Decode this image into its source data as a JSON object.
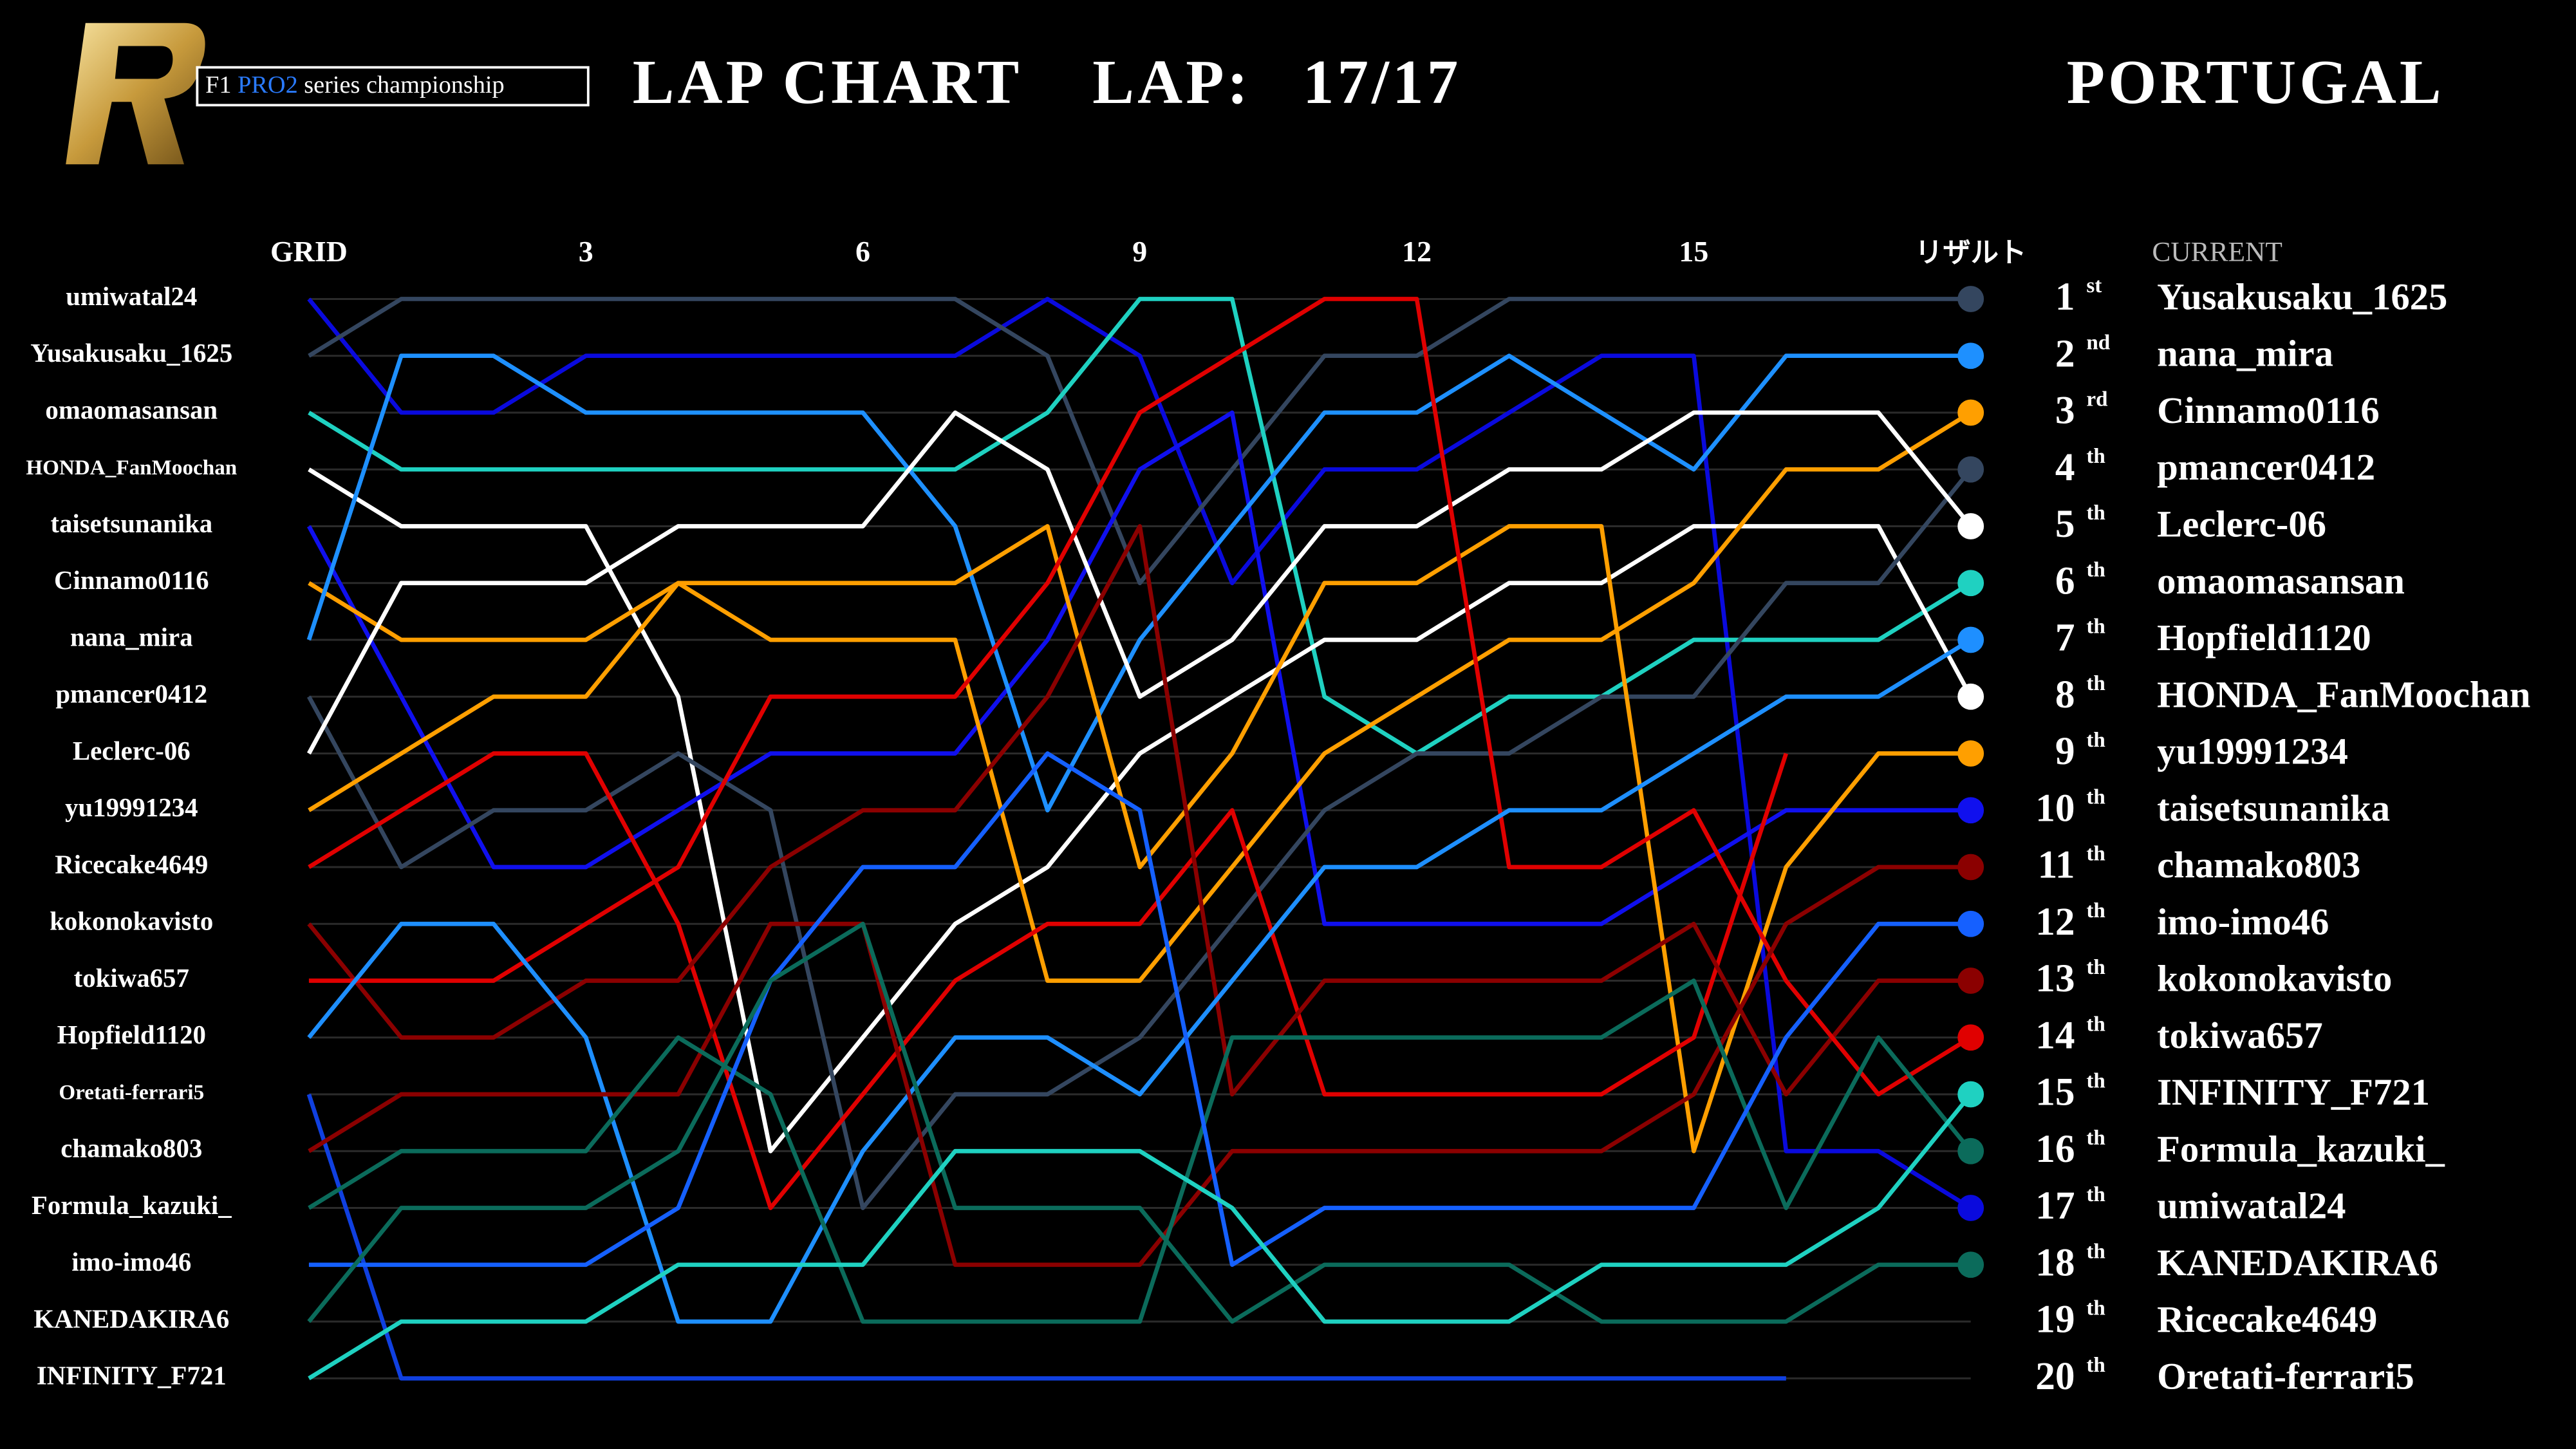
{
  "header": {
    "logo_f1": "F1",
    "logo_pro2": "PRO2",
    "logo_series": "series championship",
    "lap_label": "LAP:",
    "lap_value": "17/17",
    "location": "PORTUGAL"
  },
  "chart_data": {
    "type": "line",
    "title": "LAP CHART",
    "current_label": "CURRENT",
    "x": [
      "GRID",
      null,
      null,
      "3",
      null,
      null,
      "6",
      null,
      null,
      "9",
      null,
      null,
      "12",
      null,
      null,
      "15",
      null,
      null,
      "リザルト"
    ],
    "ylim": [
      1,
      20
    ],
    "series": [
      {
        "name": "umiwatal24",
        "color": "#0a0add",
        "values": [
          1,
          3,
          3,
          2,
          2,
          2,
          2,
          2,
          1,
          2,
          6,
          4,
          4,
          3,
          2,
          2,
          16,
          16,
          17
        ]
      },
      {
        "name": "Yusakusaku_1625",
        "color": "#34465f",
        "values": [
          2,
          1,
          1,
          1,
          1,
          1,
          1,
          1,
          2,
          6,
          4,
          2,
          2,
          1,
          1,
          1,
          1,
          1,
          1
        ]
      },
      {
        "name": "omaomasansan",
        "color": "#1fd1c1",
        "values": [
          3,
          4,
          4,
          4,
          4,
          4,
          4,
          4,
          3,
          1,
          1,
          8,
          9,
          8,
          8,
          7,
          7,
          7,
          6
        ]
      },
      {
        "name": "HONDA_FanMoochan",
        "color": "#ffffff",
        "values": [
          4,
          5,
          5,
          5,
          8,
          16,
          14,
          12,
          11,
          9,
          8,
          7,
          7,
          6,
          6,
          5,
          5,
          5,
          8
        ]
      },
      {
        "name": "taisetsunanika",
        "color": "#1010ee",
        "values": [
          5,
          8,
          11,
          11,
          10,
          9,
          9,
          9,
          7,
          4,
          3,
          12,
          12,
          12,
          12,
          11,
          10,
          10,
          10
        ]
      },
      {
        "name": "Cinnamo0116",
        "color": "#ff9f00",
        "values": [
          6,
          7,
          7,
          7,
          6,
          7,
          7,
          7,
          13,
          13,
          11,
          9,
          8,
          7,
          7,
          6,
          4,
          4,
          3
        ]
      },
      {
        "name": "nana_mira",
        "color": "#1e90ff",
        "values": [
          7,
          2,
          2,
          3,
          3,
          3,
          3,
          5,
          10,
          7,
          5,
          3,
          3,
          2,
          3,
          4,
          2,
          2,
          2
        ]
      },
      {
        "name": "pmancer0412",
        "color": "#34465f",
        "values": [
          8,
          11,
          10,
          10,
          9,
          10,
          17,
          15,
          15,
          14,
          12,
          10,
          9,
          9,
          8,
          8,
          6,
          6,
          4
        ]
      },
      {
        "name": "Leclerc-06",
        "color": "#ffffff",
        "values": [
          9,
          6,
          6,
          6,
          5,
          5,
          5,
          3,
          4,
          8,
          7,
          5,
          5,
          4,
          4,
          3,
          3,
          3,
          5
        ]
      },
      {
        "name": "yu19991234",
        "color": "#ff9f00",
        "values": [
          10,
          9,
          8,
          8,
          6,
          6,
          6,
          6,
          5,
          11,
          9,
          6,
          6,
          5,
          5,
          16,
          11,
          9,
          9
        ]
      },
      {
        "name": "Ricecake4649",
        "color": "#e00000",
        "values": [
          11,
          10,
          9,
          9,
          12,
          17,
          15,
          13,
          12,
          12,
          10,
          15,
          15,
          15,
          15,
          14,
          9,
          null,
          null
        ]
      },
      {
        "name": "kokonokavisto",
        "color": "#8b0000",
        "values": [
          12,
          14,
          14,
          13,
          13,
          11,
          10,
          10,
          8,
          5,
          15,
          13,
          13,
          13,
          13,
          12,
          15,
          13,
          13
        ]
      },
      {
        "name": "tokiwa657",
        "color": "#e00000",
        "values": [
          13,
          13,
          13,
          12,
          11,
          8,
          8,
          8,
          6,
          3,
          2,
          1,
          1,
          11,
          11,
          10,
          13,
          15,
          14
        ]
      },
      {
        "name": "Hopfield1120",
        "color": "#1e8fff",
        "values": [
          14,
          12,
          12,
          14,
          19,
          19,
          16,
          14,
          14,
          15,
          13,
          11,
          11,
          10,
          10,
          9,
          8,
          8,
          7
        ]
      },
      {
        "name": "Oretati-ferrari5",
        "color": "#1040e0",
        "values": [
          15,
          20,
          20,
          20,
          20,
          20,
          20,
          20,
          20,
          20,
          20,
          20,
          20,
          20,
          20,
          20,
          20,
          null,
          null
        ]
      },
      {
        "name": "chamako803",
        "color": "#8b0000",
        "values": [
          16,
          15,
          15,
          15,
          15,
          12,
          12,
          18,
          18,
          18,
          16,
          16,
          16,
          16,
          16,
          15,
          12,
          11,
          11
        ]
      },
      {
        "name": "Formula_kazuki_",
        "color": "#0b6b5b",
        "values": [
          17,
          16,
          16,
          16,
          14,
          15,
          19,
          19,
          19,
          19,
          14,
          14,
          14,
          14,
          14,
          13,
          17,
          14,
          16
        ]
      },
      {
        "name": "imo-imo46",
        "color": "#1560ff",
        "values": [
          18,
          18,
          18,
          18,
          17,
          13,
          11,
          11,
          9,
          10,
          18,
          17,
          17,
          17,
          17,
          17,
          14,
          12,
          12
        ]
      },
      {
        "name": "KANEDAKIRA6",
        "color": "#0b6b5b",
        "values": [
          19,
          17,
          17,
          17,
          16,
          13,
          12,
          17,
          17,
          17,
          19,
          18,
          18,
          18,
          19,
          19,
          19,
          18,
          18
        ]
      },
      {
        "name": "INFINITY_F721",
        "color": "#1fd1c1",
        "values": [
          20,
          19,
          19,
          19,
          18,
          18,
          18,
          16,
          16,
          16,
          17,
          19,
          19,
          19,
          18,
          18,
          18,
          17,
          15
        ]
      }
    ],
    "results": [
      {
        "position": 1,
        "suffix": "st",
        "name": "Yusakusaku_1625"
      },
      {
        "position": 2,
        "suffix": "nd",
        "name": "nana_mira"
      },
      {
        "position": 3,
        "suffix": "rd",
        "name": "Cinnamo0116"
      },
      {
        "position": 4,
        "suffix": "th",
        "name": "pmancer0412"
      },
      {
        "position": 5,
        "suffix": "th",
        "name": "Leclerc-06"
      },
      {
        "position": 6,
        "suffix": "th",
        "name": "omaomasansan"
      },
      {
        "position": 7,
        "suffix": "th",
        "name": "Hopfield1120"
      },
      {
        "position": 8,
        "suffix": "th",
        "name": "HONDA_FanMoochan"
      },
      {
        "position": 9,
        "suffix": "th",
        "name": "yu19991234"
      },
      {
        "position": 10,
        "suffix": "th",
        "name": "taisetsunanika"
      },
      {
        "position": 11,
        "suffix": "th",
        "name": "chamako803"
      },
      {
        "position": 12,
        "suffix": "th",
        "name": "imo-imo46"
      },
      {
        "position": 13,
        "suffix": "th",
        "name": "kokonokavisto"
      },
      {
        "position": 14,
        "suffix": "th",
        "name": "tokiwa657"
      },
      {
        "position": 15,
        "suffix": "th",
        "name": "INFINITY_F721"
      },
      {
        "position": 16,
        "suffix": "th",
        "name": "Formula_kazuki_"
      },
      {
        "position": 17,
        "suffix": "th",
        "name": "umiwatal24"
      },
      {
        "position": 18,
        "suffix": "th",
        "name": "KANEDAKIRA6"
      },
      {
        "position": 19,
        "suffix": "th",
        "name": "Ricecake4649"
      },
      {
        "position": 20,
        "suffix": "th",
        "name": "Oretati-ferrari5"
      }
    ]
  }
}
